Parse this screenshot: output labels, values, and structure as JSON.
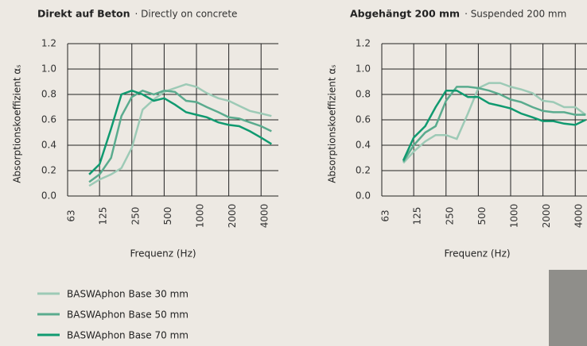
{
  "chart_data": [
    {
      "type": "line",
      "title": "Direkt auf Beton",
      "subtitle": "· Directly on concrete",
      "x_label": "Frequenz (Hz)",
      "y_label": "Absorptionskoeffizient αₛ",
      "x": [
        100,
        125,
        160,
        200,
        250,
        315,
        400,
        500,
        630,
        800,
        1000,
        1250,
        1600,
        2000,
        2500,
        3150,
        4000,
        5000
      ],
      "log_x": true,
      "xlim": [
        63,
        5800
      ],
      "xticks": [
        63,
        125,
        250,
        500,
        1000,
        2000,
        4000
      ],
      "ylim": [
        0,
        1.2
      ],
      "yticks": [
        {
          "value": 0,
          "label": "0.0"
        },
        0.2,
        0.4,
        0.6,
        0.8,
        {
          "value": 1,
          "label": "1.0"
        },
        1.2
      ],
      "grid": true,
      "series": [
        {
          "name": "BASWAphon Base 30 mm",
          "color": "#9dcab6",
          "values": [
            0.08,
            0.13,
            0.17,
            0.22,
            0.38,
            0.68,
            0.76,
            0.82,
            0.85,
            0.88,
            0.86,
            0.81,
            0.77,
            0.75,
            0.71,
            0.67,
            0.65,
            0.63
          ]
        },
        {
          "name": "BASWAphon Base 50 mm",
          "color": "#5aab8e",
          "values": [
            0.11,
            0.17,
            0.3,
            0.63,
            0.78,
            0.83,
            0.8,
            0.83,
            0.82,
            0.75,
            0.74,
            0.7,
            0.66,
            0.62,
            0.61,
            0.58,
            0.55,
            0.51
          ]
        },
        {
          "name": "BASWAphon Base 70 mm",
          "color": "#109a70",
          "values": [
            0.17,
            0.25,
            0.53,
            0.8,
            0.83,
            0.8,
            0.75,
            0.77,
            0.72,
            0.66,
            0.64,
            0.62,
            0.58,
            0.56,
            0.55,
            0.51,
            0.46,
            0.41
          ]
        }
      ]
    },
    {
      "type": "line",
      "title": "Abgehängt 200 mm",
      "subtitle": "· Suspended 200 mm",
      "x_label": "Frequenz (Hz)",
      "y_label": "Absorptionskoeffizient αₛ",
      "x": [
        100,
        125,
        160,
        200,
        250,
        315,
        400,
        500,
        630,
        800,
        1000,
        1250,
        1600,
        2000,
        2500,
        3150,
        4000,
        5000
      ],
      "log_x": true,
      "xlim": [
        63,
        5800
      ],
      "xticks": [
        63,
        125,
        250,
        500,
        1000,
        2000,
        4000
      ],
      "ylim": [
        0,
        1.2
      ],
      "yticks": [
        {
          "value": 0,
          "label": "0.0"
        },
        0.2,
        0.4,
        0.6,
        0.8,
        {
          "value": 1,
          "label": "1.0"
        },
        1.2
      ],
      "grid": true,
      "series": [
        {
          "color": "#9dcab6",
          "values": [
            0.26,
            0.35,
            0.43,
            0.48,
            0.48,
            0.45,
            0.65,
            0.85,
            0.89,
            0.89,
            0.86,
            0.84,
            0.81,
            0.75,
            0.74,
            0.7,
            0.7,
            0.64
          ]
        },
        {
          "color": "#5aab8e",
          "values": [
            0.27,
            0.4,
            0.5,
            0.55,
            0.75,
            0.86,
            0.86,
            0.85,
            0.83,
            0.8,
            0.76,
            0.74,
            0.7,
            0.67,
            0.66,
            0.66,
            0.64,
            0.64
          ]
        },
        {
          "color": "#109a70",
          "values": [
            0.28,
            0.46,
            0.55,
            0.7,
            0.83,
            0.83,
            0.78,
            0.78,
            0.73,
            0.71,
            0.69,
            0.65,
            0.62,
            0.59,
            0.59,
            0.57,
            0.56,
            0.6
          ]
        }
      ]
    }
  ]
}
